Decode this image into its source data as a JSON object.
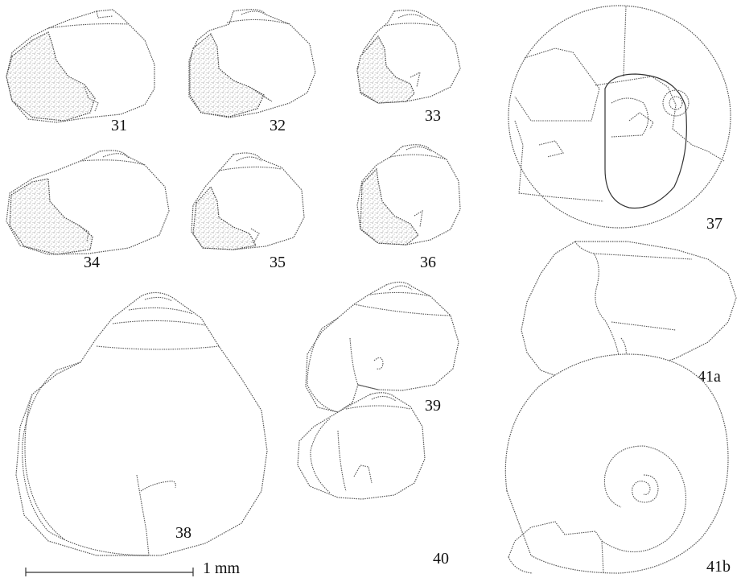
{
  "figures": {
    "f31": "31",
    "f32": "32",
    "f33": "33",
    "f34": "34",
    "f35": "35",
    "f36": "36",
    "f37": "37",
    "f38": "38",
    "f39": "39",
    "f40": "40",
    "f41a": "41a",
    "f41b": "41b"
  },
  "scale_bar": {
    "label": "1 mm"
  },
  "colors": {
    "ink": "#333333",
    "stipple": "#777777",
    "paper": "#ffffff"
  }
}
